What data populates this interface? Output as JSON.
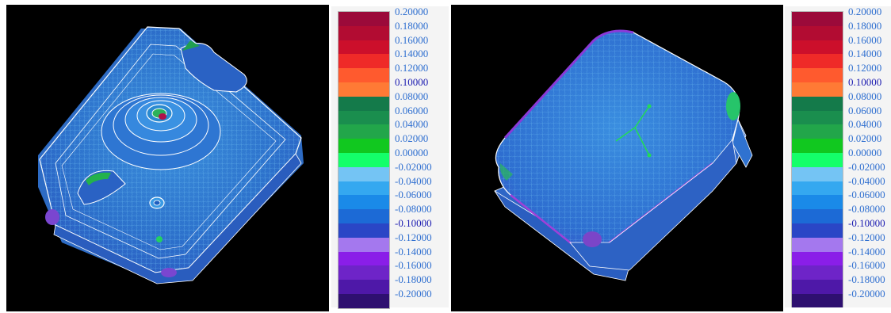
{
  "legend": {
    "labels": [
      "0.20000",
      "0.18000",
      "0.16000",
      "0.14000",
      "0.12000",
      "0.10000",
      "0.08000",
      "0.06000",
      "0.04000",
      "0.02000",
      "0.00000",
      "-0.02000",
      "-0.04000",
      "-0.06000",
      "-0.08000",
      "-0.10000",
      "-0.12000",
      "-0.14000",
      "-0.16000",
      "-0.18000",
      "-0.20000"
    ],
    "colors": [
      "#9b0a3a",
      "#b20c32",
      "#cc0f2b",
      "#ef2a28",
      "#ff5a2e",
      "#ff7a35",
      "#147a4a",
      "#1a8e4e",
      "#22a64a",
      "#11c81f",
      "#14ff6a",
      "#74c4f4",
      "#34a8f0",
      "#1a8ae8",
      "#1c6ad6",
      "#2a46c6",
      "#3c2cc8",
      "#a478ee",
      "#8a1ee8",
      "#6e24c8",
      "#4e18a8",
      "#2e1070"
    ],
    "tolerance_labels": [
      "0.10000",
      "-0.10000"
    ]
  },
  "views": {
    "left_name": "part-top-view",
    "right_name": "part-bottom-view"
  }
}
